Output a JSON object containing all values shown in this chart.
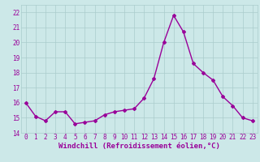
{
  "x": [
    0,
    1,
    2,
    3,
    4,
    5,
    6,
    7,
    8,
    9,
    10,
    11,
    12,
    13,
    14,
    15,
    16,
    17,
    18,
    19,
    20,
    21,
    22,
    23
  ],
  "y": [
    16.0,
    15.1,
    14.8,
    15.4,
    15.4,
    14.6,
    14.7,
    14.8,
    15.2,
    15.4,
    15.5,
    15.6,
    16.3,
    17.6,
    20.0,
    21.8,
    20.7,
    18.6,
    18.0,
    17.5,
    16.4,
    15.8,
    15.0,
    14.8
  ],
  "line_color": "#990099",
  "marker": "D",
  "marker_size": 2,
  "bg_color": "#cce8e8",
  "grid_color": "#aacccc",
  "xlabel": "Windchill (Refroidissement éolien,°C)",
  "xlabel_color": "#990099",
  "ylim": [
    14,
    22.5
  ],
  "xlim": [
    -0.5,
    23.5
  ],
  "yticks": [
    14,
    15,
    16,
    17,
    18,
    19,
    20,
    21,
    22
  ],
  "xticks": [
    0,
    1,
    2,
    3,
    4,
    5,
    6,
    7,
    8,
    9,
    10,
    11,
    12,
    13,
    14,
    15,
    16,
    17,
    18,
    19,
    20,
    21,
    22,
    23
  ],
  "tick_color": "#990099",
  "tick_labelsize": 5.5,
  "xlabel_fontsize": 6.5,
  "line_width": 1.0
}
